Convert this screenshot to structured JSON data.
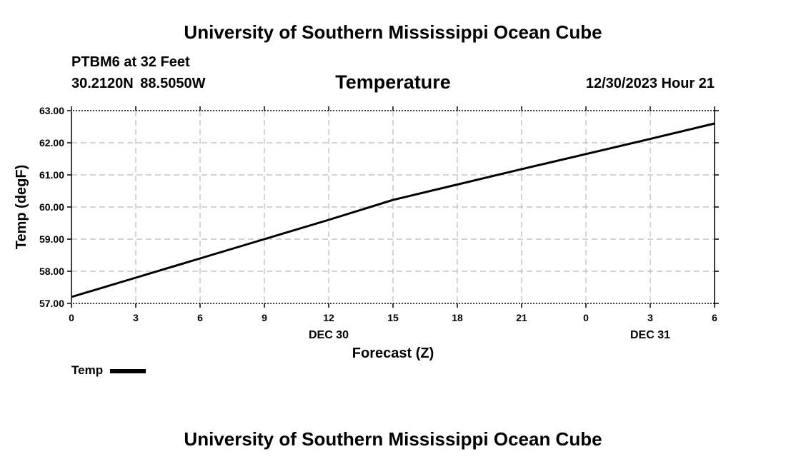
{
  "header": {
    "title": "University of Southern Mississippi Ocean Cube",
    "station": "PTBM6 at 32 Feet",
    "coordinates": "30.2120N  88.5050W",
    "chart_title": "Temperature",
    "datetime": "12/30/2023 Hour 21"
  },
  "footer": {
    "title": "University of Southern Mississippi Ocean Cube"
  },
  "legend": {
    "label": "Temp"
  },
  "colors": {
    "series": "#000000",
    "grid": "#bbbbbb"
  },
  "chart_data": {
    "type": "line",
    "xlabel": "Forecast (Z)",
    "ylabel": "Temp (degF)",
    "x_tick_labels": [
      "0",
      "3",
      "6",
      "9",
      "12",
      "15",
      "18",
      "21",
      "0",
      "3",
      "6"
    ],
    "x_date_labels": [
      {
        "label": "DEC 30",
        "at_hour": 12
      },
      {
        "label": "DEC 31",
        "at_hour": 27
      }
    ],
    "xlim": [
      0,
      30
    ],
    "ylim": [
      57.0,
      63.0
    ],
    "y_ticks": [
      "57.00",
      "58.00",
      "59.00",
      "60.00",
      "61.00",
      "62.00",
      "63.00"
    ],
    "grid": true,
    "legend_position": "bottom-left",
    "series": [
      {
        "name": "Temp",
        "x": [
          0,
          3,
          6,
          9,
          12,
          15,
          18,
          21,
          24,
          27,
          30
        ],
        "y": [
          57.2,
          57.8,
          58.4,
          59.0,
          59.6,
          60.22,
          60.7,
          61.18,
          61.65,
          62.12,
          62.6
        ]
      }
    ]
  }
}
